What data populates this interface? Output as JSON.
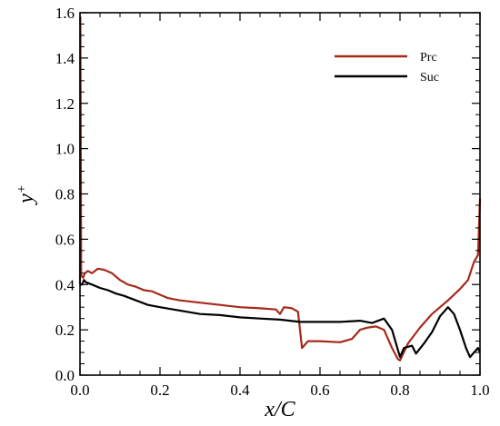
{
  "chart_data": {
    "type": "line",
    "title": "",
    "xlabel": "x/C",
    "ylabel_base": "y",
    "ylabel_sup": "+",
    "xlim": [
      0,
      1
    ],
    "ylim": [
      0,
      1.6
    ],
    "xticks": [
      0,
      0.2,
      0.4,
      0.6,
      0.8,
      1.0
    ],
    "xtick_labels": [
      "0.0",
      "0.2",
      "0.4",
      "0.6",
      "0.8",
      "1.0"
    ],
    "yticks": [
      0,
      0.2,
      0.4,
      0.6,
      0.8,
      1.0,
      1.2,
      1.4,
      1.6
    ],
    "ytick_labels": [
      "0.0",
      "0.2",
      "0.4",
      "0.6",
      "0.8",
      "1.0",
      "1.2",
      "1.4",
      "1.6"
    ],
    "grid": false,
    "legend_position": "top-right",
    "series": [
      {
        "name": "Prc",
        "color": "#a52a1a",
        "points": [
          [
            0.0,
            0.4
          ],
          [
            0.001,
            1.58
          ],
          [
            0.003,
            0.44
          ],
          [
            0.008,
            0.43
          ],
          [
            0.012,
            0.45
          ],
          [
            0.02,
            0.46
          ],
          [
            0.03,
            0.45
          ],
          [
            0.045,
            0.47
          ],
          [
            0.06,
            0.465
          ],
          [
            0.08,
            0.45
          ],
          [
            0.1,
            0.42
          ],
          [
            0.12,
            0.4
          ],
          [
            0.14,
            0.39
          ],
          [
            0.16,
            0.375
          ],
          [
            0.18,
            0.37
          ],
          [
            0.2,
            0.355
          ],
          [
            0.22,
            0.34
          ],
          [
            0.25,
            0.33
          ],
          [
            0.3,
            0.32
          ],
          [
            0.35,
            0.31
          ],
          [
            0.4,
            0.3
          ],
          [
            0.45,
            0.295
          ],
          [
            0.49,
            0.29
          ],
          [
            0.5,
            0.27
          ],
          [
            0.51,
            0.3
          ],
          [
            0.53,
            0.295
          ],
          [
            0.545,
            0.28
          ],
          [
            0.55,
            0.2
          ],
          [
            0.555,
            0.12
          ],
          [
            0.57,
            0.15
          ],
          [
            0.6,
            0.15
          ],
          [
            0.65,
            0.145
          ],
          [
            0.68,
            0.16
          ],
          [
            0.7,
            0.2
          ],
          [
            0.72,
            0.21
          ],
          [
            0.74,
            0.215
          ],
          [
            0.76,
            0.2
          ],
          [
            0.78,
            0.12
          ],
          [
            0.795,
            0.07
          ],
          [
            0.8,
            0.065
          ],
          [
            0.82,
            0.14
          ],
          [
            0.85,
            0.21
          ],
          [
            0.88,
            0.27
          ],
          [
            0.9,
            0.3
          ],
          [
            0.92,
            0.33
          ],
          [
            0.95,
            0.38
          ],
          [
            0.97,
            0.42
          ],
          [
            0.985,
            0.5
          ],
          [
            0.995,
            0.53
          ],
          [
            1.0,
            0.78
          ]
        ]
      },
      {
        "name": "Suc",
        "color": "#000000",
        "points": [
          [
            0.0,
            0.4
          ],
          [
            0.005,
            0.4
          ],
          [
            0.01,
            0.42
          ],
          [
            0.015,
            0.41
          ],
          [
            0.03,
            0.4
          ],
          [
            0.05,
            0.385
          ],
          [
            0.07,
            0.375
          ],
          [
            0.09,
            0.36
          ],
          [
            0.11,
            0.35
          ],
          [
            0.14,
            0.33
          ],
          [
            0.17,
            0.31
          ],
          [
            0.2,
            0.3
          ],
          [
            0.25,
            0.285
          ],
          [
            0.3,
            0.27
          ],
          [
            0.35,
            0.265
          ],
          [
            0.4,
            0.255
          ],
          [
            0.45,
            0.25
          ],
          [
            0.5,
            0.245
          ],
          [
            0.55,
            0.235
          ],
          [
            0.6,
            0.235
          ],
          [
            0.65,
            0.235
          ],
          [
            0.7,
            0.24
          ],
          [
            0.73,
            0.23
          ],
          [
            0.76,
            0.25
          ],
          [
            0.78,
            0.2
          ],
          [
            0.795,
            0.11
          ],
          [
            0.8,
            0.08
          ],
          [
            0.81,
            0.12
          ],
          [
            0.83,
            0.13
          ],
          [
            0.84,
            0.095
          ],
          [
            0.86,
            0.14
          ],
          [
            0.88,
            0.19
          ],
          [
            0.9,
            0.26
          ],
          [
            0.92,
            0.3
          ],
          [
            0.935,
            0.27
          ],
          [
            0.95,
            0.2
          ],
          [
            0.965,
            0.12
          ],
          [
            0.975,
            0.08
          ],
          [
            0.985,
            0.1
          ],
          [
            0.995,
            0.12
          ],
          [
            1.0,
            0.1
          ]
        ]
      }
    ]
  }
}
